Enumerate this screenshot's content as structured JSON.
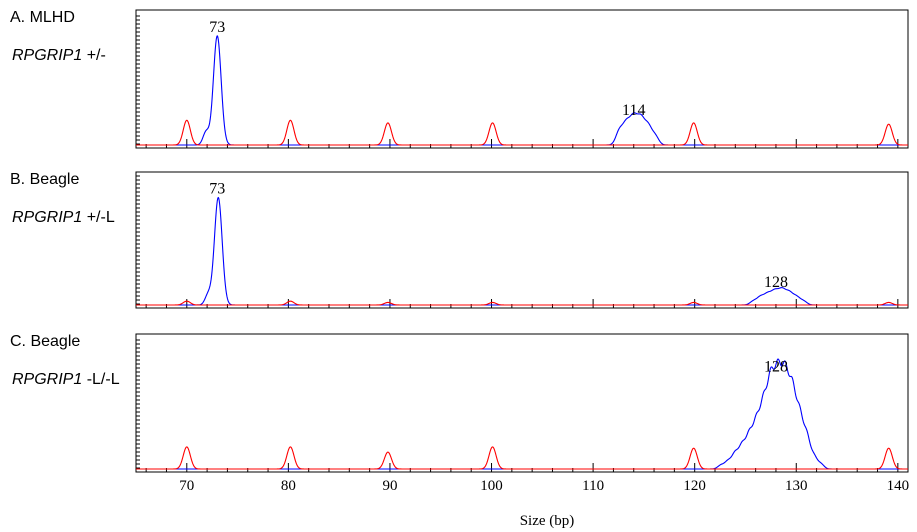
{
  "chart_data": [
    {
      "type": "line",
      "panel_label": "A. MLHD",
      "genotype": {
        "gene": "RPGRIP1",
        "suffix": " +/-"
      },
      "peak_labels": [
        {
          "x": 73,
          "text": "73"
        },
        {
          "x": 114,
          "text": "114"
        }
      ],
      "series": [
        {
          "color": "#0000ff",
          "peaks": [
            {
              "x": 73,
              "h": 0.84,
              "w": 0.38
            },
            {
              "x": 71.9,
              "h": 0.1,
              "w": 0.3
            },
            {
              "x": 112.6,
              "h": 0.11,
              "w": 0.35
            },
            {
              "x": 113.3,
              "h": 0.16,
              "w": 0.35
            },
            {
              "x": 114.0,
              "h": 0.2,
              "w": 0.35
            },
            {
              "x": 114.7,
              "h": 0.19,
              "w": 0.35
            },
            {
              "x": 115.4,
              "h": 0.14,
              "w": 0.35
            },
            {
              "x": 116.1,
              "h": 0.07,
              "w": 0.35
            }
          ]
        },
        {
          "color": "#ff0000",
          "peaks": [
            {
              "x": 70,
              "h": 0.19,
              "w": 0.35
            },
            {
              "x": 80.2,
              "h": 0.19,
              "w": 0.35
            },
            {
              "x": 89.8,
              "h": 0.17,
              "w": 0.35
            },
            {
              "x": 100.1,
              "h": 0.17,
              "w": 0.35
            },
            {
              "x": 119.9,
              "h": 0.17,
              "w": 0.35
            },
            {
              "x": 139.1,
              "h": 0.16,
              "w": 0.35
            }
          ]
        }
      ]
    },
    {
      "type": "line",
      "panel_label": "B. Beagle",
      "genotype": {
        "gene": "RPGRIP1",
        "suffix": " +/-L"
      },
      "peak_labels": [
        {
          "x": 73,
          "text": "73"
        },
        {
          "x": 128,
          "text": "128"
        }
      ],
      "series": [
        {
          "color": "#0000ff",
          "peaks": [
            {
              "x": 73.1,
              "h": 0.84,
              "w": 0.38
            },
            {
              "x": 72.1,
              "h": 0.08,
              "w": 0.3
            },
            {
              "x": 125.8,
              "h": 0.03,
              "w": 0.35
            },
            {
              "x": 126.5,
              "h": 0.06,
              "w": 0.35
            },
            {
              "x": 127.2,
              "h": 0.08,
              "w": 0.35
            },
            {
              "x": 127.9,
              "h": 0.1,
              "w": 0.35
            },
            {
              "x": 128.6,
              "h": 0.11,
              "w": 0.35
            },
            {
              "x": 129.3,
              "h": 0.09,
              "w": 0.35
            },
            {
              "x": 130.0,
              "h": 0.06,
              "w": 0.35
            },
            {
              "x": 130.7,
              "h": 0.03,
              "w": 0.35
            }
          ]
        },
        {
          "color": "#ff0000",
          "peaks": [
            {
              "x": 70,
              "h": 0.03,
              "w": 0.35
            },
            {
              "x": 80.2,
              "h": 0.03,
              "w": 0.35
            },
            {
              "x": 89.8,
              "h": 0.02,
              "w": 0.35
            },
            {
              "x": 100.1,
              "h": 0.02,
              "w": 0.35
            },
            {
              "x": 119.9,
              "h": 0.02,
              "w": 0.35
            },
            {
              "x": 139.1,
              "h": 0.02,
              "w": 0.35
            }
          ]
        }
      ]
    },
    {
      "type": "line",
      "panel_label": "C. Beagle",
      "genotype": {
        "gene": "RPGRIP1",
        "suffix": " -L/-L"
      },
      "peak_labels": [
        {
          "x": 128,
          "text": "128"
        }
      ],
      "series": [
        {
          "color": "#0000ff",
          "peaks": [
            {
              "x": 122.6,
              "h": 0.03,
              "w": 0.32
            },
            {
              "x": 123.3,
              "h": 0.06,
              "w": 0.32
            },
            {
              "x": 124.0,
              "h": 0.12,
              "w": 0.32
            },
            {
              "x": 124.7,
              "h": 0.18,
              "w": 0.32
            },
            {
              "x": 125.4,
              "h": 0.26,
              "w": 0.32
            },
            {
              "x": 126.1,
              "h": 0.36,
              "w": 0.32
            },
            {
              "x": 126.8,
              "h": 0.5,
              "w": 0.32
            },
            {
              "x": 127.5,
              "h": 0.67,
              "w": 0.32
            },
            {
              "x": 128.2,
              "h": 0.72,
              "w": 0.32
            },
            {
              "x": 128.9,
              "h": 0.71,
              "w": 0.32
            },
            {
              "x": 129.6,
              "h": 0.6,
              "w": 0.32
            },
            {
              "x": 130.3,
              "h": 0.42,
              "w": 0.32
            },
            {
              "x": 131.0,
              "h": 0.26,
              "w": 0.32
            },
            {
              "x": 131.7,
              "h": 0.1,
              "w": 0.32
            },
            {
              "x": 132.4,
              "h": 0.04,
              "w": 0.32
            }
          ]
        },
        {
          "color": "#ff0000",
          "peaks": [
            {
              "x": 70,
              "h": 0.17,
              "w": 0.35
            },
            {
              "x": 80.2,
              "h": 0.17,
              "w": 0.35
            },
            {
              "x": 89.8,
              "h": 0.13,
              "w": 0.35
            },
            {
              "x": 100.1,
              "h": 0.17,
              "w": 0.35
            },
            {
              "x": 119.9,
              "h": 0.16,
              "w": 0.35
            },
            {
              "x": 139.1,
              "h": 0.16,
              "w": 0.35
            }
          ]
        }
      ]
    }
  ],
  "x_axis": {
    "label": "Size (bp)",
    "xlim": [
      65,
      141
    ],
    "major_ticks": [
      70,
      80,
      90,
      100,
      110,
      120,
      130,
      140
    ],
    "tick_labels": [
      "70",
      "80",
      "90",
      "100",
      "110",
      "120",
      "130",
      "140"
    ],
    "minor_step": 2
  }
}
